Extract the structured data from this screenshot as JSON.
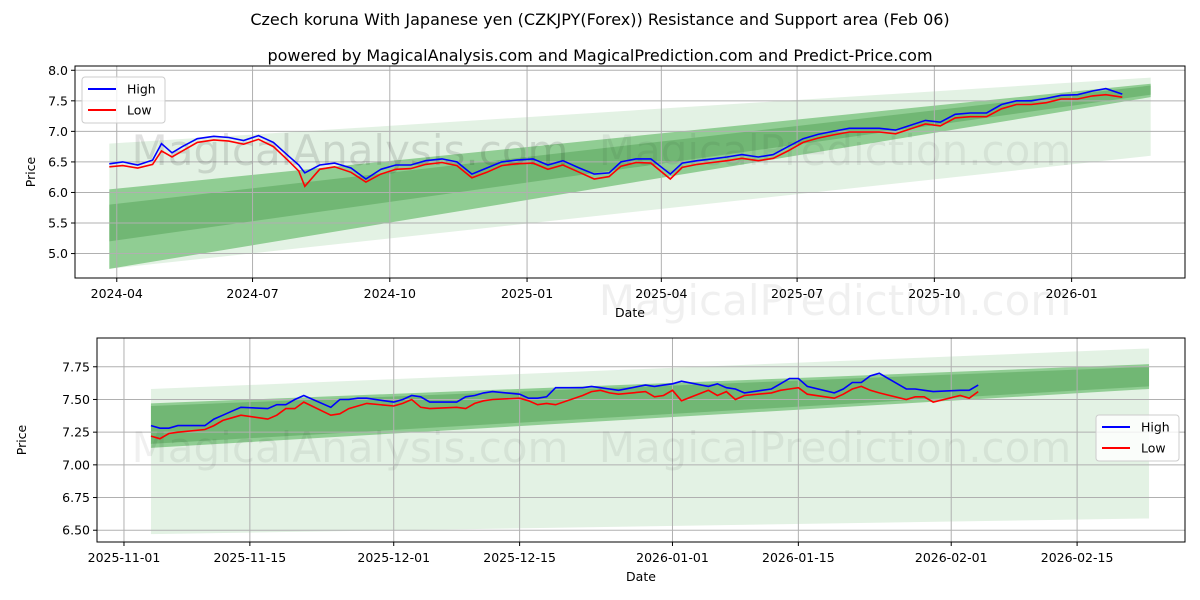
{
  "title": "Czech koruna With Japanese yen (CZKJPY(Forex)) Resistance and Support area (Feb 06)",
  "subtitle": "powered by MagicalAnalysis.com and MagicalPrediction.com and Predict-Price.com",
  "watermarks": [
    "MagicalAnalysis.com",
    "MagicalPrediction.com"
  ],
  "colors": {
    "high": "#0000ff",
    "low": "#ff0000",
    "band_light": "#c8e6c9",
    "band_mid": "#66bb6a",
    "band_dark": "#4caf50"
  },
  "chart_data": [
    {
      "type": "line",
      "xlabel": "Date",
      "ylabel": "Price",
      "xlim": [
        "2024-03-04",
        "2026-03-18"
      ],
      "ylim": [
        4.6,
        8.07
      ],
      "yticks": [
        "5.0",
        "5.5",
        "6.0",
        "6.5",
        "7.0",
        "7.5",
        "8.0"
      ],
      "xticks": [
        "2024-04",
        "2024-07",
        "2024-10",
        "2025-01",
        "2025-04",
        "2025-07",
        "2025-10",
        "2026-01"
      ],
      "xtick_dates": [
        "2024-04-01",
        "2024-07-01",
        "2024-10-01",
        "2025-01-01",
        "2025-04-01",
        "2025-07-01",
        "2025-10-01",
        "2026-01-01"
      ],
      "grid": true,
      "legend": "top-left",
      "legend_entries": [
        "High",
        "Low"
      ],
      "bands": [
        {
          "start": "2024-03-27",
          "end": "2026-02-23",
          "start_range": [
            4.75,
            6.8
          ],
          "end_range": [
            6.6,
            7.88
          ],
          "shade": "light"
        },
        {
          "start": "2024-03-27",
          "end": "2026-02-23",
          "start_range": [
            4.75,
            6.05
          ],
          "end_range": [
            7.56,
            7.78
          ],
          "shade": "mid"
        },
        {
          "start": "2024-03-27",
          "end": "2026-02-23",
          "start_range": [
            5.2,
            5.8
          ],
          "end_range": [
            7.6,
            7.75
          ],
          "shade": "dark"
        }
      ],
      "dates": [
        "2024-03-27",
        "2024-04-05",
        "2024-04-15",
        "2024-04-25",
        "2024-05-01",
        "2024-05-08",
        "2024-05-15",
        "2024-05-25",
        "2024-06-05",
        "2024-06-15",
        "2024-06-25",
        "2024-07-05",
        "2024-07-15",
        "2024-07-25",
        "2024-08-01",
        "2024-08-05",
        "2024-08-15",
        "2024-08-25",
        "2024-09-05",
        "2024-09-15",
        "2024-09-25",
        "2024-10-05",
        "2024-10-15",
        "2024-10-25",
        "2024-11-05",
        "2024-11-15",
        "2024-11-25",
        "2024-12-05",
        "2024-12-15",
        "2024-12-25",
        "2025-01-05",
        "2025-01-15",
        "2025-01-25",
        "2025-02-05",
        "2025-02-15",
        "2025-02-25",
        "2025-03-05",
        "2025-03-15",
        "2025-03-25",
        "2025-04-07",
        "2025-04-15",
        "2025-04-25",
        "2025-05-05",
        "2025-05-15",
        "2025-05-25",
        "2025-06-05",
        "2025-06-15",
        "2025-06-25",
        "2025-07-05",
        "2025-07-15",
        "2025-07-25",
        "2025-08-05",
        "2025-08-15",
        "2025-08-25",
        "2025-09-05",
        "2025-09-15",
        "2025-09-25",
        "2025-10-05",
        "2025-10-15",
        "2025-10-25",
        "2025-11-05",
        "2025-11-15",
        "2025-11-25",
        "2025-12-05",
        "2025-12-15",
        "2025-12-25",
        "2026-01-05",
        "2026-01-15",
        "2026-01-24",
        "2026-02-04"
      ],
      "series": [
        {
          "name": "High",
          "values": [
            6.47,
            6.5,
            6.45,
            6.53,
            6.8,
            6.65,
            6.75,
            6.88,
            6.92,
            6.9,
            6.85,
            6.93,
            6.82,
            6.6,
            6.45,
            6.32,
            6.45,
            6.48,
            6.4,
            6.22,
            6.38,
            6.45,
            6.45,
            6.52,
            6.55,
            6.5,
            6.3,
            6.4,
            6.5,
            6.53,
            6.55,
            6.45,
            6.52,
            6.4,
            6.3,
            6.32,
            6.5,
            6.55,
            6.55,
            6.3,
            6.48,
            6.52,
            6.55,
            6.58,
            6.62,
            6.58,
            6.62,
            6.75,
            6.88,
            6.95,
            7.0,
            7.05,
            7.05,
            7.05,
            7.02,
            7.1,
            7.18,
            7.15,
            7.28,
            7.3,
            7.3,
            7.44,
            7.5,
            7.5,
            7.54,
            7.59,
            7.6,
            7.66,
            7.7,
            7.61
          ]
        },
        {
          "name": "Low",
          "values": [
            6.42,
            6.44,
            6.4,
            6.46,
            6.68,
            6.58,
            6.68,
            6.82,
            6.86,
            6.84,
            6.79,
            6.87,
            6.75,
            6.52,
            6.35,
            6.1,
            6.38,
            6.42,
            6.33,
            6.17,
            6.3,
            6.38,
            6.39,
            6.46,
            6.49,
            6.44,
            6.24,
            6.33,
            6.44,
            6.47,
            6.48,
            6.38,
            6.45,
            6.33,
            6.22,
            6.26,
            6.43,
            6.49,
            6.48,
            6.22,
            6.41,
            6.46,
            6.49,
            6.52,
            6.56,
            6.52,
            6.56,
            6.68,
            6.82,
            6.89,
            6.94,
            6.99,
            6.99,
            6.99,
            6.96,
            7.04,
            7.12,
            7.09,
            7.22,
            7.24,
            7.24,
            7.37,
            7.44,
            7.44,
            7.47,
            7.53,
            7.53,
            7.58,
            7.6,
            7.56
          ]
        }
      ]
    },
    {
      "type": "line",
      "xlabel": "Date",
      "ylabel": "Price",
      "xlim": [
        "2025-10-29",
        "2026-02-27"
      ],
      "ylim": [
        6.41,
        7.97
      ],
      "yticks": [
        "6.50",
        "6.75",
        "7.00",
        "7.25",
        "7.50",
        "7.75"
      ],
      "xticks": [
        "2025-11-01",
        "2025-11-15",
        "2025-12-01",
        "2025-12-15",
        "2026-01-01",
        "2026-01-15",
        "2026-02-01",
        "2026-02-15"
      ],
      "xtick_dates": [
        "2025-11-01",
        "2025-11-15",
        "2025-12-01",
        "2025-12-15",
        "2026-01-01",
        "2026-01-15",
        "2026-02-01",
        "2026-02-15"
      ],
      "grid": true,
      "legend": "center-right",
      "legend_entries": [
        "High",
        "Low"
      ],
      "bands": [
        {
          "start": "2025-11-04",
          "end": "2026-02-23",
          "start_range": [
            6.47,
            7.58
          ],
          "end_range": [
            6.59,
            7.89
          ],
          "shade": "light"
        },
        {
          "start": "2025-11-04",
          "end": "2026-02-23",
          "start_range": [
            7.13,
            7.47
          ],
          "end_range": [
            7.58,
            7.77
          ],
          "shade": "mid"
        },
        {
          "start": "2025-11-04",
          "end": "2026-02-23",
          "start_range": [
            7.16,
            7.45
          ],
          "end_range": [
            7.6,
            7.75
          ],
          "shade": "dark"
        }
      ],
      "dates": [
        "2025-11-04",
        "2025-11-05",
        "2025-11-06",
        "2025-11-07",
        "2025-11-10",
        "2025-11-11",
        "2025-11-12",
        "2025-11-13",
        "2025-11-14",
        "2025-11-17",
        "2025-11-18",
        "2025-11-19",
        "2025-11-20",
        "2025-11-21",
        "2025-11-24",
        "2025-11-25",
        "2025-11-26",
        "2025-11-27",
        "2025-11-28",
        "2025-12-01",
        "2025-12-02",
        "2025-12-03",
        "2025-12-04",
        "2025-12-05",
        "2025-12-08",
        "2025-12-09",
        "2025-12-10",
        "2025-12-11",
        "2025-12-12",
        "2025-12-15",
        "2025-12-16",
        "2025-12-17",
        "2025-12-18",
        "2025-12-19",
        "2025-12-22",
        "2025-12-23",
        "2025-12-24",
        "2025-12-25",
        "2025-12-26",
        "2025-12-29",
        "2025-12-30",
        "2025-12-31",
        "2026-01-01",
        "2026-01-02",
        "2026-01-05",
        "2026-01-06",
        "2026-01-07",
        "2026-01-08",
        "2026-01-09",
        "2026-01-12",
        "2026-01-13",
        "2026-01-14",
        "2026-01-15",
        "2026-01-16",
        "2026-01-19",
        "2026-01-20",
        "2026-01-21",
        "2026-01-22",
        "2026-01-23",
        "2026-01-24",
        "2026-01-27",
        "2026-01-28",
        "2026-01-29",
        "2026-01-30",
        "2026-02-02",
        "2026-02-03",
        "2026-02-04"
      ],
      "series": [
        {
          "name": "High",
          "values": [
            7.3,
            7.28,
            7.28,
            7.3,
            7.3,
            7.35,
            7.38,
            7.41,
            7.44,
            7.43,
            7.46,
            7.46,
            7.5,
            7.53,
            7.44,
            7.5,
            7.5,
            7.51,
            7.51,
            7.48,
            7.5,
            7.53,
            7.52,
            7.48,
            7.48,
            7.52,
            7.53,
            7.55,
            7.56,
            7.54,
            7.51,
            7.51,
            7.52,
            7.59,
            7.59,
            7.6,
            7.59,
            7.58,
            7.57,
            7.61,
            7.6,
            7.61,
            7.62,
            7.64,
            7.6,
            7.62,
            7.59,
            7.58,
            7.55,
            7.58,
            7.62,
            7.66,
            7.66,
            7.6,
            7.55,
            7.58,
            7.63,
            7.63,
            7.68,
            7.7,
            7.58,
            7.58,
            7.57,
            7.56,
            7.57,
            7.57,
            7.61
          ]
        },
        {
          "name": "Low",
          "values": [
            7.22,
            7.2,
            7.24,
            7.25,
            7.27,
            7.3,
            7.34,
            7.36,
            7.38,
            7.35,
            7.38,
            7.43,
            7.43,
            7.48,
            7.38,
            7.39,
            7.43,
            7.45,
            7.47,
            7.45,
            7.47,
            7.5,
            7.44,
            7.43,
            7.44,
            7.43,
            7.47,
            7.49,
            7.5,
            7.51,
            7.49,
            7.46,
            7.47,
            7.46,
            7.53,
            7.56,
            7.57,
            7.55,
            7.54,
            7.56,
            7.52,
            7.53,
            7.57,
            7.49,
            7.57,
            7.53,
            7.56,
            7.5,
            7.53,
            7.55,
            7.57,
            7.58,
            7.59,
            7.54,
            7.51,
            7.54,
            7.58,
            7.6,
            7.57,
            7.55,
            7.5,
            7.52,
            7.52,
            7.48,
            7.53,
            7.51,
            7.56
          ]
        }
      ]
    }
  ]
}
